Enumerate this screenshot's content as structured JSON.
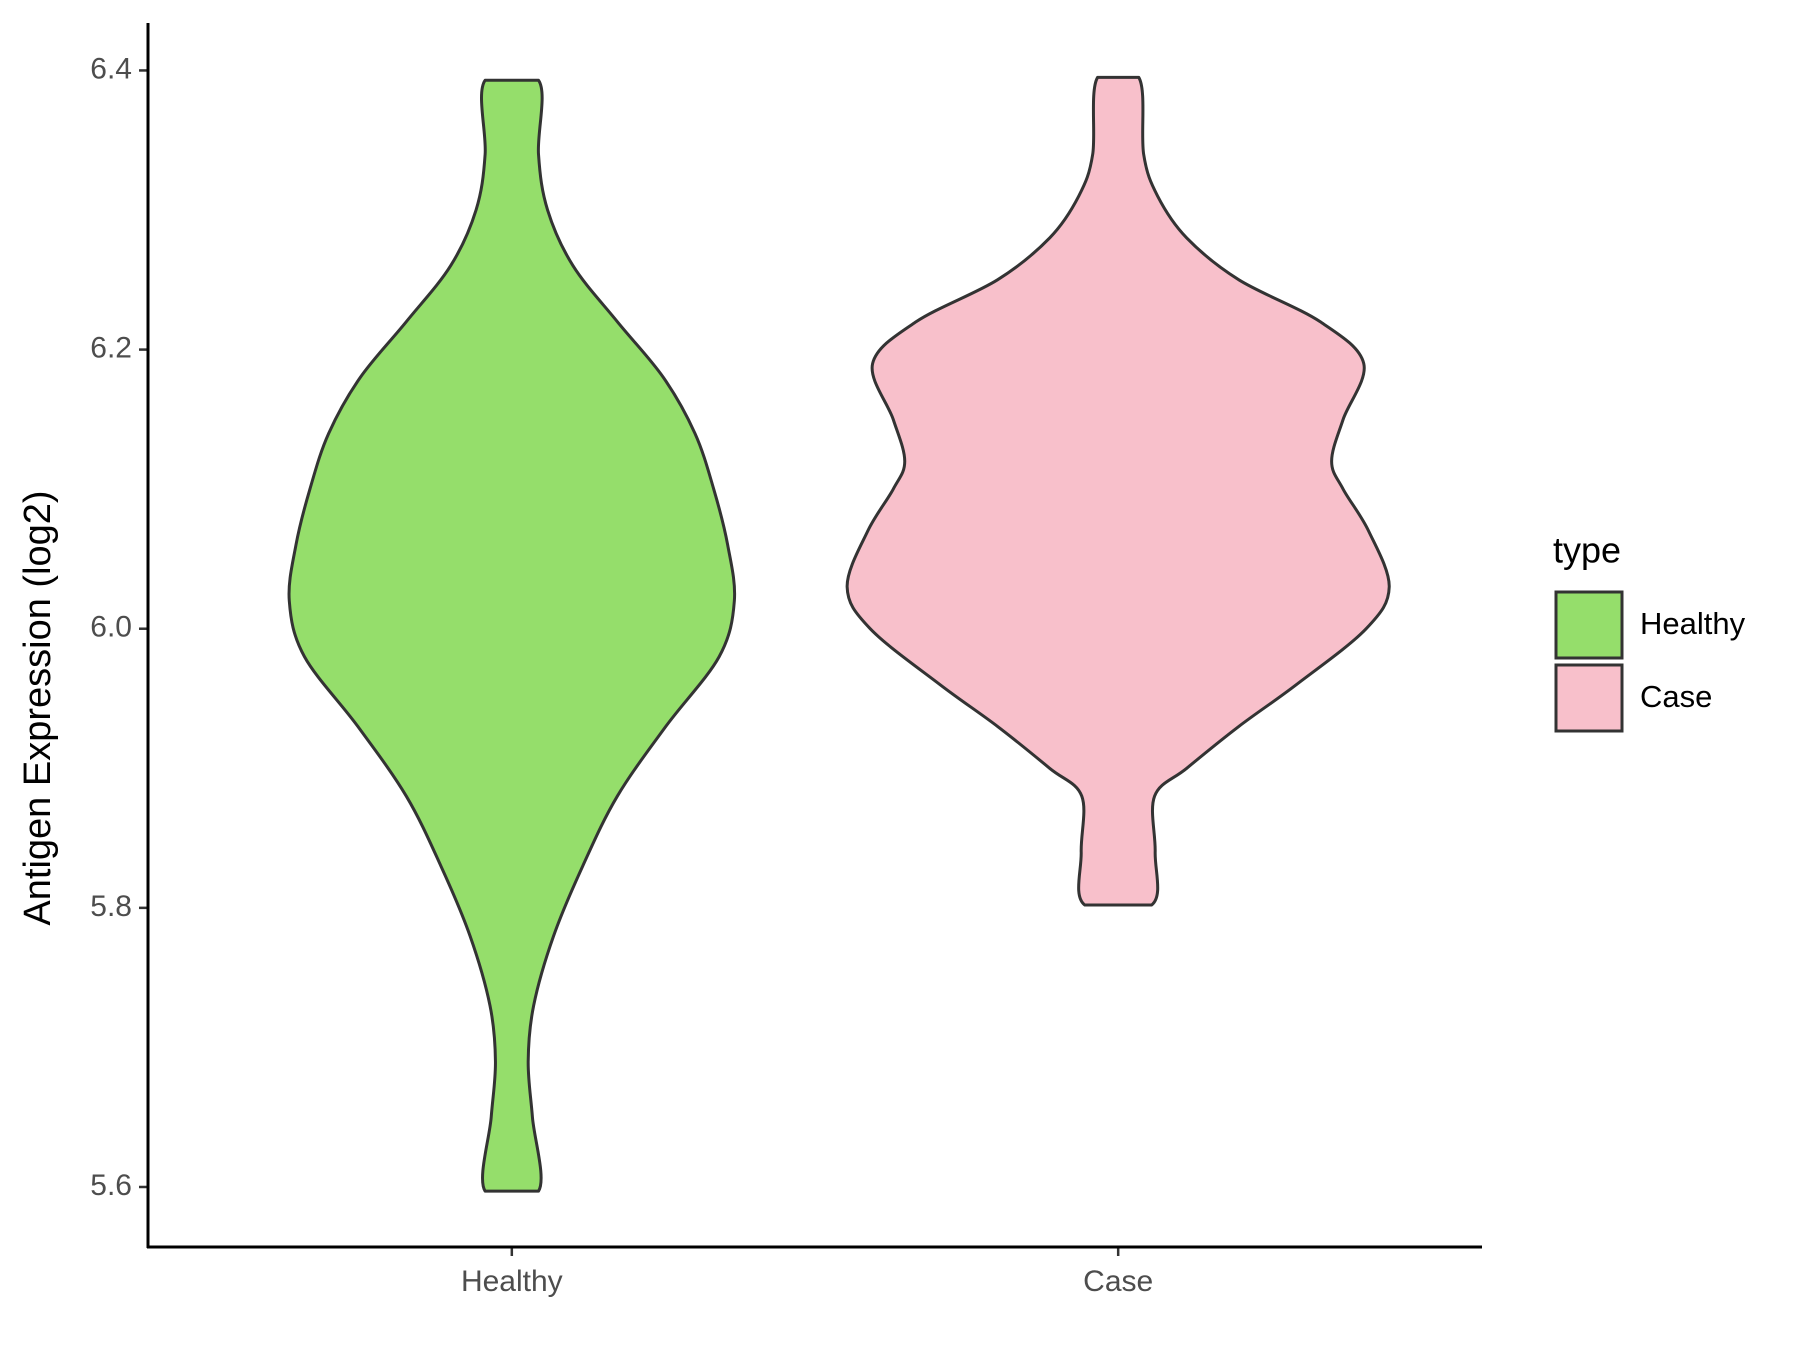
{
  "chart_data": {
    "type": "violin",
    "ylabel": "Antigen Expression (log2)",
    "categories": [
      "Healthy",
      "Case"
    ],
    "xlim": [
      0.4,
      2.6
    ],
    "ylim": [
      5.557,
      6.434
    ],
    "yticks": [
      {
        "value": 5.6,
        "label": "5.6"
      },
      {
        "value": 5.8,
        "label": "5.8"
      },
      {
        "value": 6.0,
        "label": "6.0"
      },
      {
        "value": 6.2,
        "label": "6.2"
      },
      {
        "value": 6.4,
        "label": "6.4"
      }
    ],
    "legend_title": "type",
    "legend_position": "right",
    "series": [
      {
        "name": "Healthy",
        "color": "#95de6b",
        "y": [
          5.597,
          5.65,
          5.69,
          5.73,
          5.78,
          5.83,
          5.88,
          5.93,
          5.98,
          6.02,
          6.06,
          6.1,
          6.14,
          6.18,
          6.22,
          6.26,
          6.3,
          6.34,
          6.393
        ],
        "width": [
          0.044,
          0.034,
          0.027,
          0.036,
          0.069,
          0.117,
          0.174,
          0.254,
          0.342,
          0.367,
          0.356,
          0.333,
          0.302,
          0.25,
          0.174,
          0.101,
          0.059,
          0.044,
          0.044
        ]
      },
      {
        "name": "Case",
        "color": "#f8c0cb",
        "y": [
          5.802,
          5.84,
          5.88,
          5.9,
          5.93,
          5.96,
          6.0,
          6.03,
          6.07,
          6.1,
          6.12,
          6.15,
          6.19,
          6.22,
          6.25,
          6.28,
          6.31,
          6.34,
          6.395
        ],
        "width": [
          0.055,
          0.061,
          0.06,
          0.113,
          0.199,
          0.294,
          0.409,
          0.447,
          0.413,
          0.371,
          0.352,
          0.371,
          0.405,
          0.333,
          0.199,
          0.113,
          0.065,
          0.042,
          0.034
        ]
      }
    ]
  }
}
